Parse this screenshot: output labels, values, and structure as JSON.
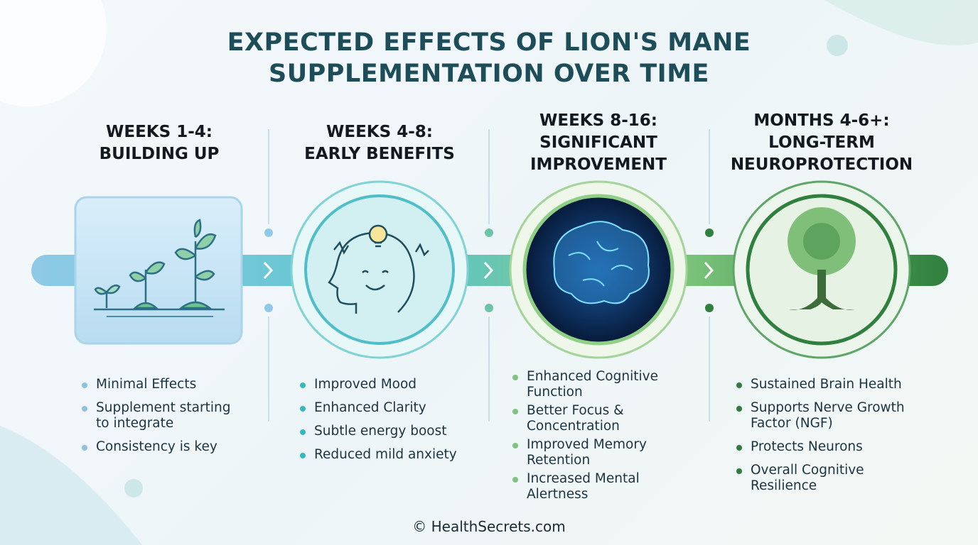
{
  "title_lines": [
    "EXPECTED EFFECTS OF LION'S MANE",
    "SUPPLEMENTATION OVER TIME"
  ],
  "stages": [
    {
      "heading_lines": [
        "WEEKS 1-4:",
        "BUILDING UP"
      ],
      "bullets": [
        "Minimal Effects",
        "Supplement starting to integrate",
        "Consistency is key"
      ]
    },
    {
      "heading_lines": [
        "WEEKS 4-8:",
        "EARLY BENEFITS"
      ],
      "bullets": [
        "Improved Mood",
        "Enhanced Clarity",
        "Subtle energy boost",
        "Reduced mild anxiety"
      ]
    },
    {
      "heading_lines": [
        "WEEKS 8-16:",
        "SIGNIFICANT",
        "IMPROVEMENT"
      ],
      "bullets": [
        "Enhanced Cognitive Function",
        "Better Focus & Concentration",
        "Improved Memory Retention",
        "Increased Mental Alertness"
      ]
    },
    {
      "heading_lines": [
        "MONTHS 4-6+:",
        "LONG-TERM",
        "NEUROPROTECTION"
      ],
      "bullets": [
        "Sustained Brain Health",
        "Supports Nerve Growth Factor (NGF)",
        "Protects Neurons",
        "Overall Cognitive Resilience"
      ]
    }
  ],
  "footer": "© HealthSecrets.com"
}
